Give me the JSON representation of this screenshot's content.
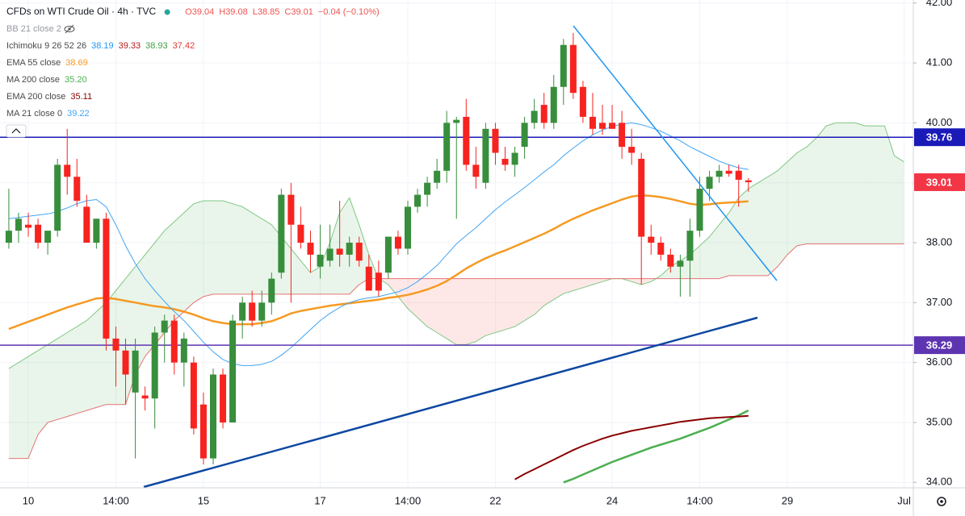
{
  "chart_data": {
    "type": "candlestick",
    "title": "CFDs on WTI Crude Oil · 4h · TVC",
    "ohlc_labels": [
      "O39.04",
      "H39.08",
      "L38.85",
      "C39.01",
      "−0.04 (−0.10%)"
    ],
    "bb_label": "BB 21 close 2",
    "categories": [
      null,
      null,
      "10",
      null,
      null,
      null,
      null,
      null,
      null,
      null,
      null,
      "14:00",
      null,
      null,
      null,
      null,
      null,
      null,
      null,
      null,
      "15",
      null,
      null,
      null,
      null,
      null,
      null,
      null,
      null,
      null,
      null,
      null,
      "17",
      null,
      null,
      null,
      null,
      null,
      null,
      null,
      null,
      "14:00",
      null,
      null,
      null,
      null,
      null,
      null,
      null,
      null,
      "22",
      null,
      null,
      null,
      null,
      null,
      null,
      null,
      null,
      null,
      null,
      null,
      "24",
      null,
      null,
      null,
      null,
      null,
      null,
      null,
      null,
      "14:00",
      null,
      null,
      null,
      null,
      null,
      null,
      null,
      null,
      "29",
      null,
      null,
      null,
      null,
      null,
      null,
      null,
      null,
      null,
      null,
      null,
      "Jul"
    ],
    "open": [
      38.0,
      38.2,
      38.3,
      38.3,
      38.0,
      38.2,
      39.3,
      39.1,
      38.6,
      38.0,
      38.4,
      36.4,
      36.2,
      35.5,
      35.45,
      35.4,
      36.5,
      36.7,
      36.0,
      36.0,
      35.3,
      34.4,
      35.8,
      35.0,
      36.7,
      37.0,
      36.7,
      37.0,
      37.5,
      38.8,
      38.3,
      38.0,
      37.6,
      37.7,
      37.9,
      37.8,
      38.0,
      37.6,
      37.5,
      37.5,
      38.1,
      37.9,
      38.6,
      38.8,
      39.0,
      39.2,
      40.0,
      40.1,
      39.3,
      39.0,
      39.9,
      39.4,
      39.3,
      39.6,
      40.0,
      40.3,
      40.0,
      40.6,
      41.3,
      40.6,
      40.1,
      40.0,
      40.0,
      40.0,
      39.6,
      39.4,
      38.1,
      38.0,
      37.8,
      37.6,
      37.7,
      38.2,
      38.9,
      39.1,
      39.2,
      39.2,
      39.04,
      null,
      null,
      null,
      null,
      null,
      null,
      null,
      null,
      null,
      null,
      null,
      null,
      null,
      null,
      null,
      null
    ],
    "high": [
      38.9,
      38.5,
      38.5,
      38.4,
      38.2,
      39.4,
      39.9,
      39.4,
      38.8,
      38.4,
      38.5,
      36.6,
      36.4,
      36.4,
      35.6,
      36.6,
      36.8,
      36.8,
      36.5,
      36.1,
      35.5,
      35.9,
      35.9,
      36.8,
      37.1,
      37.2,
      37.2,
      37.5,
      38.9,
      39.0,
      38.6,
      38.2,
      38.3,
      38.3,
      38.7,
      38.1,
      38.1,
      37.8,
      37.7,
      38.1,
      38.2,
      38.7,
      38.9,
      39.1,
      39.4,
      40.2,
      40.1,
      40.4,
      39.6,
      40.0,
      40.0,
      39.6,
      39.6,
      40.1,
      40.4,
      40.5,
      40.8,
      41.4,
      41.5,
      40.7,
      40.5,
      40.3,
      40.3,
      40.2,
      39.9,
      39.5,
      38.3,
      38.1,
      37.9,
      37.8,
      38.4,
      39.1,
      39.2,
      39.3,
      39.3,
      39.3,
      39.08,
      null,
      null,
      null,
      null,
      null,
      null,
      null,
      null,
      null,
      null,
      null,
      null,
      null,
      null,
      null,
      null
    ],
    "low": [
      37.9,
      38.0,
      38.1,
      37.9,
      37.8,
      38.1,
      38.8,
      38.6,
      38.0,
      37.9,
      36.2,
      35.6,
      35.3,
      34.4,
      35.2,
      34.9,
      36.0,
      35.8,
      35.6,
      34.8,
      34.3,
      34.3,
      34.9,
      35.0,
      36.4,
      36.6,
      36.6,
      36.8,
      37.4,
      37.0,
      37.9,
      37.5,
      37.4,
      37.6,
      37.6,
      37.6,
      37.6,
      37.2,
      37.1,
      37.4,
      37.8,
      37.8,
      38.5,
      38.6,
      38.9,
      39.0,
      38.4,
      39.2,
      38.9,
      38.9,
      39.3,
      39.2,
      39.1,
      39.4,
      39.9,
      39.9,
      39.9,
      40.3,
      40.4,
      40.0,
      39.8,
      39.8,
      39.9,
      39.4,
      39.3,
      37.3,
      37.8,
      37.7,
      37.5,
      37.1,
      37.1,
      38.1,
      38.7,
      39.0,
      39.1,
      38.6,
      38.85,
      null,
      null,
      null,
      null,
      null,
      null,
      null,
      null,
      null,
      null,
      null,
      null,
      null,
      null,
      null,
      null
    ],
    "close": [
      38.2,
      38.4,
      38.25,
      38.0,
      38.2,
      39.3,
      39.1,
      38.7,
      38.0,
      38.4,
      36.4,
      36.2,
      35.8,
      36.2,
      35.4,
      36.5,
      36.7,
      36.0,
      36.4,
      34.9,
      34.4,
      35.8,
      35.0,
      36.7,
      37.0,
      36.7,
      37.0,
      37.4,
      38.8,
      38.3,
      38.0,
      37.8,
      37.8,
      37.9,
      37.8,
      38.0,
      37.7,
      37.2,
      37.2,
      38.1,
      37.9,
      38.6,
      38.8,
      39.0,
      39.2,
      40.0,
      40.05,
      39.3,
      39.1,
      39.9,
      39.5,
      39.3,
      39.5,
      40.0,
      40.2,
      40.0,
      40.6,
      41.3,
      40.5,
      40.1,
      39.9,
      39.9,
      39.9,
      39.6,
      39.5,
      38.1,
      38.0,
      37.8,
      37.6,
      37.7,
      38.2,
      38.9,
      39.1,
      39.2,
      39.15,
      39.05,
      39.01,
      null,
      null,
      null,
      null,
      null,
      null,
      null,
      null,
      null,
      null,
      null,
      null,
      null,
      null,
      null,
      null
    ],
    "up_color": "#388e3c",
    "down_color": "#f7231f",
    "cloud": {
      "name": "Ichimoku 9 26 52 26",
      "value_labels": [
        "38.19",
        "39.33",
        "38.93",
        "37.42"
      ],
      "value_colors": [
        "#2196f3",
        "#b71c1c",
        "#43a047",
        "#e53935"
      ],
      "span_a_color": "#81c784",
      "span_b_color": "#e57373",
      "fill_up": "rgba(76,175,80,0.12)",
      "fill_down": "rgba(244,67,54,0.12)",
      "span_a": [
        35.9,
        36.0,
        36.1,
        36.2,
        36.3,
        36.4,
        36.5,
        36.6,
        36.7,
        36.85,
        37.0,
        37.2,
        37.4,
        37.6,
        37.8,
        38.0,
        38.2,
        38.35,
        38.5,
        38.65,
        38.7,
        38.7,
        38.7,
        38.65,
        38.6,
        38.5,
        38.4,
        38.3,
        38.1,
        37.9,
        37.7,
        37.5,
        37.6,
        38.0,
        38.5,
        38.75,
        38.3,
        37.8,
        37.4,
        37.3,
        37.1,
        36.9,
        36.75,
        36.6,
        36.5,
        36.4,
        36.3,
        36.3,
        36.35,
        36.45,
        36.5,
        36.55,
        36.6,
        36.7,
        36.8,
        36.95,
        37.05,
        37.15,
        37.2,
        37.25,
        37.3,
        37.35,
        37.4,
        37.4,
        37.35,
        37.3,
        37.35,
        37.45,
        37.6,
        37.7,
        37.8,
        37.95,
        38.1,
        38.3,
        38.5,
        38.75,
        38.9,
        39.0,
        39.1,
        39.2,
        39.35,
        39.5,
        39.6,
        39.75,
        39.95,
        40.0,
        40.0,
        40.0,
        39.95,
        39.95,
        39.95,
        39.45,
        39.35
      ],
      "span_b": [
        34.4,
        34.4,
        34.4,
        34.8,
        35.0,
        35.05,
        35.1,
        35.15,
        35.2,
        35.25,
        35.3,
        35.3,
        35.3,
        35.8,
        36.1,
        36.3,
        36.5,
        36.7,
        36.85,
        37.0,
        37.1,
        37.14,
        37.14,
        37.14,
        37.14,
        37.14,
        37.14,
        37.14,
        37.14,
        37.14,
        37.14,
        37.14,
        37.14,
        37.14,
        37.14,
        37.14,
        37.3,
        37.4,
        37.4,
        37.4,
        37.4,
        37.4,
        37.4,
        37.4,
        37.4,
        37.4,
        37.4,
        37.4,
        37.4,
        37.4,
        37.4,
        37.4,
        37.4,
        37.4,
        37.4,
        37.4,
        37.4,
        37.4,
        37.4,
        37.4,
        37.4,
        37.4,
        37.4,
        37.4,
        37.4,
        37.4,
        37.4,
        37.4,
        37.4,
        37.4,
        37.4,
        37.4,
        37.4,
        37.4,
        37.45,
        37.45,
        37.45,
        37.45,
        37.45,
        37.6,
        37.8,
        37.95,
        37.98,
        37.98,
        37.98,
        37.98,
        37.98,
        37.98,
        37.98,
        37.98,
        37.98,
        37.98,
        37.98
      ]
    },
    "series": [
      {
        "name": "EMA 55 close",
        "legend_value": "38.69",
        "color": "#f59a23",
        "width": 2.5,
        "values": [
          36.56,
          36.62,
          36.68,
          36.74,
          36.8,
          36.86,
          36.92,
          36.97,
          37.02,
          37.07,
          37.08,
          37.06,
          37.03,
          37.0,
          36.97,
          36.94,
          36.92,
          36.89,
          36.85,
          36.8,
          36.74,
          36.69,
          36.66,
          36.64,
          36.64,
          36.64,
          36.66,
          36.69,
          36.75,
          36.82,
          36.86,
          36.89,
          36.92,
          36.95,
          36.97,
          36.99,
          37.01,
          37.03,
          37.05,
          37.08,
          37.1,
          37.13,
          37.17,
          37.22,
          37.28,
          37.36,
          37.46,
          37.57,
          37.66,
          37.74,
          37.81,
          37.87,
          37.94,
          38.01,
          38.08,
          38.15,
          38.23,
          38.32,
          38.4,
          38.47,
          38.54,
          38.6,
          38.66,
          38.72,
          38.77,
          38.79,
          38.78,
          38.76,
          38.73,
          38.69,
          38.65,
          38.63,
          38.64,
          38.66,
          38.67,
          38.68,
          38.69,
          null,
          null,
          null,
          null,
          null,
          null,
          null,
          null,
          null,
          null,
          null,
          null,
          null,
          null,
          null,
          null
        ]
      },
      {
        "name": "MA 200 close",
        "legend_value": "35.20",
        "color": "#4caf50",
        "width": 2.5,
        "values": [
          null,
          null,
          null,
          null,
          null,
          null,
          null,
          null,
          null,
          null,
          null,
          null,
          null,
          null,
          null,
          null,
          null,
          null,
          null,
          null,
          null,
          null,
          null,
          null,
          null,
          null,
          null,
          null,
          null,
          null,
          null,
          null,
          null,
          null,
          null,
          null,
          null,
          null,
          null,
          null,
          null,
          null,
          null,
          null,
          null,
          null,
          null,
          null,
          null,
          null,
          null,
          null,
          null,
          null,
          null,
          null,
          null,
          34.0,
          34.06,
          34.13,
          34.2,
          34.27,
          34.34,
          34.4,
          34.46,
          34.52,
          34.58,
          34.63,
          34.68,
          34.73,
          34.79,
          34.85,
          34.91,
          34.98,
          35.05,
          35.12,
          35.2,
          null,
          null,
          null,
          null,
          null,
          null,
          null,
          null,
          null,
          null,
          null,
          null,
          null,
          null,
          null,
          null
        ]
      },
      {
        "name": "EMA 200 close",
        "legend_value": "35.11",
        "color": "#8b0000",
        "width": 2,
        "values": [
          null,
          null,
          null,
          null,
          null,
          null,
          null,
          null,
          null,
          null,
          null,
          null,
          null,
          null,
          null,
          null,
          null,
          null,
          null,
          null,
          null,
          null,
          null,
          null,
          null,
          null,
          null,
          null,
          null,
          null,
          null,
          null,
          null,
          null,
          null,
          null,
          null,
          null,
          null,
          null,
          null,
          null,
          null,
          null,
          null,
          null,
          null,
          null,
          null,
          null,
          null,
          null,
          34.05,
          34.14,
          34.22,
          34.3,
          34.38,
          34.46,
          34.54,
          34.61,
          34.67,
          34.73,
          34.78,
          34.82,
          34.86,
          34.89,
          34.92,
          34.95,
          34.98,
          35.01,
          35.03,
          35.05,
          35.07,
          35.08,
          35.09,
          35.1,
          35.11,
          null,
          null,
          null,
          null,
          null,
          null,
          null,
          null,
          null,
          null,
          null,
          null,
          null,
          null,
          null,
          null
        ]
      },
      {
        "name": "MA 21 close 0",
        "legend_value": "39.22",
        "color": "#42a5f5",
        "width": 1,
        "values": [
          38.4,
          38.42,
          38.44,
          38.46,
          38.48,
          38.52,
          38.58,
          38.65,
          38.7,
          38.72,
          38.6,
          38.3,
          37.95,
          37.65,
          37.4,
          37.2,
          37.02,
          36.85,
          36.7,
          36.52,
          36.34,
          36.18,
          36.05,
          35.98,
          35.95,
          35.95,
          35.97,
          36.02,
          36.12,
          36.25,
          36.4,
          36.55,
          36.7,
          36.82,
          36.92,
          37.0,
          37.05,
          37.08,
          37.1,
          37.14,
          37.18,
          37.25,
          37.35,
          37.48,
          37.62,
          37.8,
          37.98,
          38.12,
          38.25,
          38.4,
          38.55,
          38.68,
          38.8,
          38.92,
          39.05,
          39.18,
          39.3,
          39.45,
          39.58,
          39.7,
          39.8,
          39.88,
          39.94,
          39.98,
          40.0,
          39.97,
          39.92,
          39.86,
          39.78,
          39.7,
          39.6,
          39.52,
          39.44,
          39.36,
          39.3,
          39.25,
          39.22,
          null,
          null,
          null,
          null,
          null,
          null,
          null,
          null,
          null,
          null,
          null,
          null,
          null,
          null,
          null,
          null
        ]
      }
    ],
    "price_lines": [
      {
        "value": 39.76,
        "color": "#1a1ab8",
        "show_line": true
      },
      {
        "value": 36.29,
        "color": "#5e35b1",
        "show_line": true
      },
      {
        "value": 39.01,
        "color": "#f23645",
        "show_line": false
      }
    ],
    "ylim": [
      33.91,
      42.05
    ],
    "yticks": [
      {
        "value": 34,
        "label": "34.00"
      },
      {
        "value": 35,
        "label": "35.00"
      },
      {
        "value": 36,
        "label": "36.00"
      },
      {
        "value": 37,
        "label": "37.00"
      },
      {
        "value": 38,
        "label": "38.00"
      },
      {
        "value": 39,
        "label": "39.00"
      },
      {
        "value": 40,
        "label": "40.00"
      },
      {
        "value": 41,
        "label": "41.00"
      },
      {
        "value": 42,
        "label": "42.00"
      }
    ],
    "grid": true
  }
}
